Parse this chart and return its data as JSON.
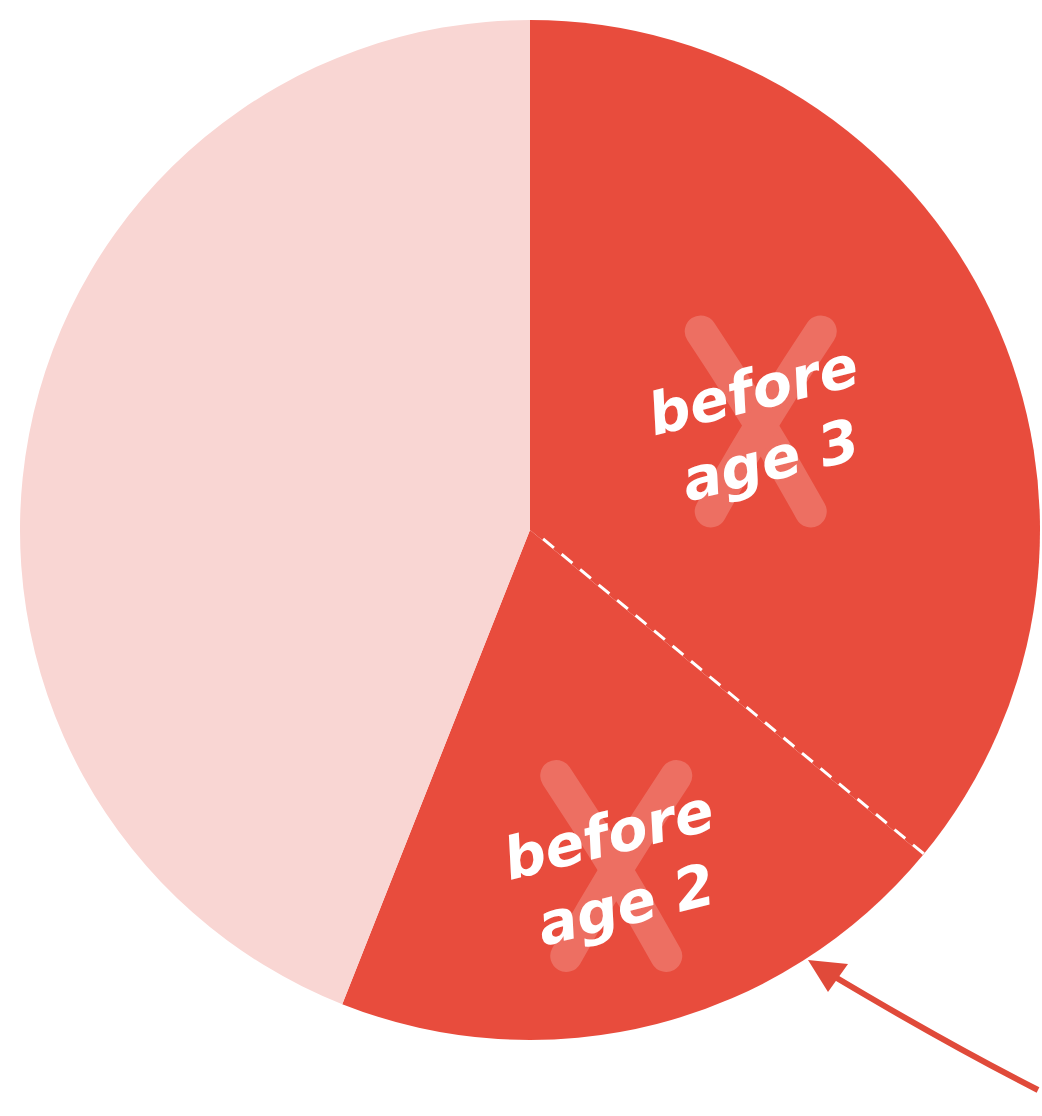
{
  "chart_data": {
    "type": "pie",
    "categories": [
      "before age 3",
      "before age 2",
      null
    ],
    "values": [
      36,
      20,
      44
    ],
    "colors": [
      "#e84c3d",
      "#e84c3d",
      "#f9d6d3"
    ]
  }
}
